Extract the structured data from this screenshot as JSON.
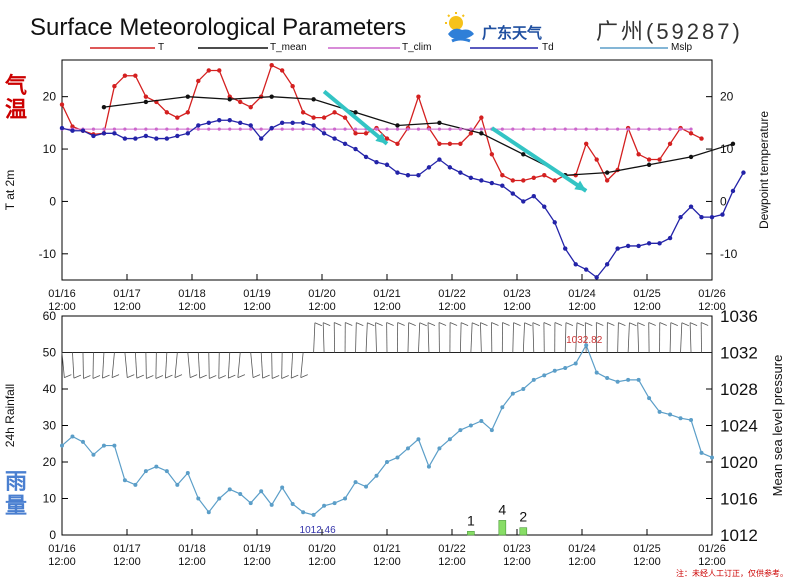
{
  "header": {
    "title": "Surface Meteorological Parameters",
    "logo_text": "广东天气",
    "station": "广州(59287)",
    "note": "注：未经人工订正，仅供参考。"
  },
  "side_labels": {
    "temperature": "气温",
    "rainfall": "雨量"
  },
  "colors": {
    "T": "#d42020",
    "T_mean": "#111111",
    "T_clim": "#cc66cc",
    "Td": "#2323a8",
    "Mslp": "#5b9ec8",
    "rain": "#88dd66",
    "arrow": "#33c4c4"
  },
  "icons": [
    "weather-logo-icon",
    "trend-arrow-icon",
    "wind-barb-icon"
  ],
  "chart_data": [
    {
      "type": "line",
      "panel": "temperature",
      "x_axis": {
        "range": [
          "01/16 12:00",
          "01/26 12:00"
        ],
        "step_hours": 6,
        "ticks": [
          "01/16\n12:00",
          "01/17\n12:00",
          "01/18\n12:00",
          "01/19\n12:00",
          "01/20\n12:00",
          "01/21\n12:00",
          "01/22\n12:00",
          "01/23\n12:00",
          "01/24\n12:00",
          "01/25\n12:00",
          "01/26\n12:00"
        ]
      },
      "ylabel": "T at 2m",
      "ylabel_right": "Dewpoint temperature",
      "ylim": [
        -15,
        27
      ],
      "yticks": [
        -10,
        0,
        10,
        20
      ],
      "legend": {
        "placement": "top",
        "entries": [
          "T",
          "T_mean",
          "T_clim",
          "Td"
        ]
      },
      "series": [
        {
          "name": "T",
          "color": "#d42020",
          "start_step": 0,
          "values": [
            18.5,
            14.3,
            13.5,
            12.8,
            13,
            22,
            24,
            24,
            20,
            19,
            17,
            16,
            17,
            23,
            25,
            25,
            20,
            19,
            18,
            20,
            26,
            25,
            22,
            17,
            16,
            16,
            17,
            16,
            13,
            13,
            14,
            12,
            11,
            14,
            20,
            14,
            11,
            11,
            11,
            13,
            16,
            9,
            5,
            4,
            4,
            4.5,
            5,
            4,
            5,
            5,
            11,
            8,
            4,
            6,
            14,
            9,
            8,
            8,
            11,
            14,
            13,
            12
          ]
        },
        {
          "name": "T_mean",
          "color": "#111111",
          "start_step": 4,
          "values": [
            18,
            null,
            null,
            null,
            19,
            null,
            null,
            null,
            20,
            null,
            null,
            null,
            19.5,
            null,
            null,
            null,
            20,
            null,
            null,
            null,
            19.5,
            null,
            null,
            null,
            17,
            null,
            null,
            null,
            14.5,
            null,
            null,
            null,
            15,
            null,
            null,
            null,
            13,
            null,
            null,
            null,
            9,
            null,
            null,
            null,
            5,
            null,
            null,
            null,
            5.5,
            null,
            null,
            null,
            7,
            null,
            null,
            null,
            8.5,
            null,
            null,
            null,
            11
          ]
        },
        {
          "name": "T_clim",
          "color": "#cc66cc",
          "start_step": 0,
          "values": [
            13.8,
            13.8,
            13.8,
            13.8,
            13.8,
            13.8,
            13.8,
            13.8,
            13.8,
            13.8,
            13.8,
            13.8,
            13.8,
            13.8,
            13.8,
            13.8,
            13.8,
            13.8,
            13.8,
            13.8,
            13.8,
            13.8,
            13.8,
            13.8,
            13.8,
            13.8,
            13.8,
            13.8,
            13.8,
            13.8,
            13.8,
            13.8,
            13.8,
            13.8,
            13.8,
            13.8,
            13.8,
            13.8,
            13.8,
            13.8,
            13.8,
            13.8,
            13.8,
            13.8,
            13.8,
            13.8,
            13.8,
            13.8,
            13.8,
            13.8,
            13.8,
            13.8,
            13.8,
            13.8,
            13.8,
            13.8,
            13.8,
            13.8,
            13.8,
            13.8,
            13.8
          ]
        },
        {
          "name": "Td",
          "color": "#2323a8",
          "start_step": 0,
          "values": [
            14,
            13.5,
            13.5,
            12.5,
            13,
            13,
            12,
            12,
            12.5,
            12,
            12,
            12.5,
            13,
            14.5,
            15,
            15.5,
            15.5,
            15,
            14.5,
            12,
            14,
            15,
            15,
            15,
            14.5,
            13,
            12,
            11,
            10,
            8.5,
            7.5,
            7,
            5.5,
            5,
            5,
            6.5,
            8,
            6.5,
            5.5,
            4.5,
            4,
            3.5,
            3,
            1.5,
            0,
            1,
            -1,
            -4,
            -9,
            -12,
            -13,
            -14.5,
            -12,
            -9,
            -8.5,
            -8.5,
            -8,
            -8,
            -7,
            -3,
            -1,
            -3,
            -3,
            -2.5,
            2,
            5.5
          ]
        }
      ],
      "annotations": [
        {
          "type": "arrow",
          "color": "#33c4c4",
          "from": {
            "step": 25,
            "value": 21
          },
          "to": {
            "step": 31,
            "value": 11
          }
        },
        {
          "type": "arrow",
          "color": "#33c4c4",
          "from": {
            "step": 41,
            "value": 14
          },
          "to": {
            "step": 50,
            "value": 2
          }
        }
      ]
    },
    {
      "type": "line",
      "panel": "pressure-rainfall",
      "x_axis": {
        "range": [
          "01/16 12:00",
          "01/26 12:00"
        ],
        "step_hours": 6
      },
      "ylabel": "24h Rainfall",
      "ylabel_right": "Mean sea level pressure",
      "ylim": [
        0,
        60
      ],
      "yticks": [
        0,
        10,
        20,
        30,
        40,
        50,
        60
      ],
      "ylim_right": [
        1012,
        1036
      ],
      "yticks_right": [
        1012,
        1016,
        1020,
        1024,
        1028,
        1032,
        1036
      ],
      "legend": {
        "placement": "top",
        "entries": [
          "Mslp"
        ]
      },
      "series": [
        {
          "name": "Mslp",
          "color": "#5b9ec8",
          "start_step": 0,
          "values": [
            1021.8,
            1022.8,
            1022.2,
            1020.8,
            1021.8,
            1021.8,
            1018,
            1017.5,
            1019,
            1019.5,
            1019,
            1017.5,
            1018.8,
            1016,
            1014.5,
            1016,
            1017,
            1016.5,
            1015.5,
            1016.8,
            1015.3,
            1017.2,
            1015.4,
            1014.5,
            1014.2,
            1015.2,
            1015.5,
            1016,
            1017.8,
            1017.3,
            1018.5,
            1020,
            1020.5,
            1021.5,
            1022.5,
            1019.5,
            1021.5,
            1022.5,
            1023.5,
            1024,
            1024.5,
            1023.5,
            1026,
            1027.5,
            1028,
            1029,
            1029.5,
            1030,
            1030.3,
            1030.8,
            1032.8,
            1029.8,
            1029.2,
            1028.8,
            1029,
            1029,
            1027,
            1025.5,
            1025.2,
            1024.8,
            1024.6,
            1021,
            1020.5
          ]
        },
        {
          "name": "Rainfall",
          "type": "bar",
          "color": "#88dd66",
          "bars": [
            {
              "step": 39,
              "value": 1,
              "label": "1"
            },
            {
              "step": 42,
              "value": 4,
              "label": "4"
            },
            {
              "step": 44,
              "value": 2,
              "label": "2"
            }
          ]
        }
      ],
      "annotations": [
        {
          "type": "max",
          "label": "1032.82",
          "color": "#cc3333"
        },
        {
          "type": "min",
          "label": "1012.46",
          "color": "#3333aa"
        }
      ],
      "wind_barbs": {
        "show": true,
        "baseline": 50
      }
    }
  ]
}
